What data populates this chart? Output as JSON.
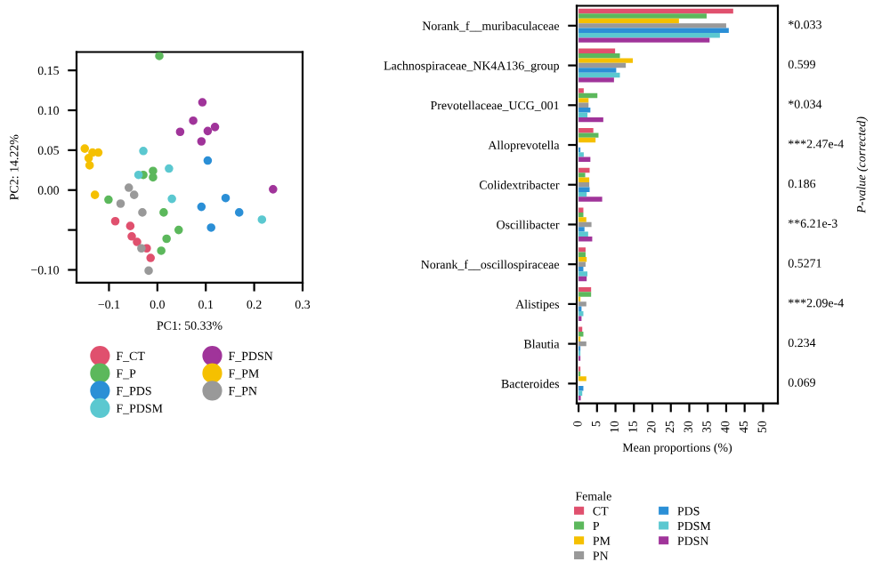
{
  "chart_data": [
    {
      "type": "scatter",
      "xlabel": "PC1: 50.33%",
      "ylabel": "PC2: 14.22%",
      "xlim": [
        -0.167,
        0.3
      ],
      "ylim": [
        -0.116,
        0.173
      ],
      "xticks": [
        {
          "value": -0.1,
          "label": "−0.1"
        },
        {
          "value": 0.0,
          "label": "0.0"
        },
        {
          "value": 0.1,
          "label": "0.1"
        },
        {
          "value": 0.2,
          "label": "0.2"
        },
        {
          "value": 0.3,
          "label": "0.3"
        }
      ],
      "yticks": [
        {
          "value": -0.1,
          "label": "−0.10"
        },
        {
          "value": -0.05,
          "label": null
        },
        {
          "value": 0.0,
          "label": "0.00"
        },
        {
          "value": 0.05,
          "label": "0.05"
        },
        {
          "value": 0.1,
          "label": "0.10"
        },
        {
          "value": 0.15,
          "label": "0.15"
        }
      ],
      "legend": "bottom",
      "marker": "circle",
      "series": [
        {
          "name": "F_CT",
          "color": "#e0506e",
          "x": [
            -0.087,
            -0.056,
            -0.042,
            -0.014,
            -0.022,
            -0.053
          ],
          "values": [
            -0.039,
            -0.045,
            -0.065,
            -0.085,
            -0.073,
            -0.058
          ]
        },
        {
          "name": "F_P",
          "color": "#5cb85c",
          "x": [
            0.004,
            -0.101,
            -0.029,
            -0.009,
            0.013,
            0.044,
            0.019,
            0.008,
            -0.009
          ],
          "values": [
            0.168,
            -0.012,
            0.019,
            0.024,
            -0.028,
            -0.05,
            -0.061,
            -0.076,
            0.016
          ]
        },
        {
          "name": "F_PDS",
          "color": "#2b8fd6",
          "x": [
            0.104,
            0.111,
            0.141,
            0.091,
            0.169
          ],
          "values": [
            0.037,
            -0.047,
            -0.01,
            -0.021,
            -0.028
          ]
        },
        {
          "name": "F_PDSM",
          "color": "#5bc8d0",
          "x": [
            -0.029,
            -0.039,
            0.03,
            0.216,
            0.024
          ],
          "values": [
            0.049,
            0.019,
            -0.011,
            -0.037,
            0.027
          ]
        },
        {
          "name": "F_PDSN",
          "color": "#a0349a",
          "x": [
            0.093,
            0.047,
            0.074,
            0.091,
            0.104,
            0.239,
            0.119
          ],
          "values": [
            0.11,
            0.073,
            0.087,
            0.061,
            0.074,
            0.001,
            0.079
          ]
        },
        {
          "name": "F_PM",
          "color": "#f5c000",
          "x": [
            -0.15,
            -0.142,
            -0.134,
            -0.122,
            -0.14,
            -0.129
          ],
          "values": [
            0.052,
            0.04,
            0.047,
            0.047,
            0.031,
            -0.006
          ]
        },
        {
          "name": "F_PN",
          "color": "#999999",
          "x": [
            -0.059,
            -0.076,
            -0.031,
            -0.033,
            -0.018,
            -0.048
          ],
          "values": [
            0.003,
            -0.017,
            -0.028,
            -0.073,
            -0.101,
            -0.006
          ]
        }
      ]
    },
    {
      "type": "bar",
      "orientation": "horizontal",
      "xlabel": "Mean proportions (%)",
      "y2label": "P-value (corrected)",
      "legend_title": "Female",
      "legend": "bottom",
      "xlim": [
        -0.5,
        54
      ],
      "xticks": [
        0,
        5,
        10,
        15,
        20,
        25,
        30,
        35,
        40,
        45,
        50
      ],
      "categories": [
        "Norank_f__muribaculaceae",
        "Lachnospiraceae_NK4A136_group",
        "Prevotellaceae_UCG_001",
        "Alloprevotella",
        "Colidextribacter",
        "Oscillibacter",
        "Norank_f__oscillospiraceae",
        "Alistipes",
        "Blautia",
        "Bacteroides"
      ],
      "annotations": [
        "*0.033",
        "0.599",
        "*0.034",
        "***2.47e-4",
        "0.186",
        "**6.21e-3",
        "0.5271",
        "***2.09e-4",
        "0.234",
        "0.069"
      ],
      "series": [
        {
          "name": "CT",
          "color": "#e0506e",
          "values": [
            41.9,
            9.9,
            1.4,
            4.0,
            3.0,
            1.3,
            1.9,
            3.4,
            1.0,
            0.5
          ]
        },
        {
          "name": "P",
          "color": "#5cb85c",
          "values": [
            34.7,
            11.2,
            5.1,
            5.4,
            1.8,
            1.3,
            1.9,
            3.4,
            1.3,
            0.5
          ]
        },
        {
          "name": "PM",
          "color": "#f5c000",
          "values": [
            27.2,
            14.7,
            2.7,
            4.6,
            2.9,
            2.1,
            2.2,
            0.5,
            0.5,
            2.1
          ]
        },
        {
          "name": "PN",
          "color": "#999999",
          "values": [
            40.0,
            12.8,
            2.7,
            null,
            2.9,
            3.5,
            1.9,
            2.1,
            2.1,
            null
          ]
        },
        {
          "name": "PDS",
          "color": "#2b8fd6",
          "values": [
            40.7,
            10.2,
            3.2,
            0.5,
            3.0,
            1.6,
            1.3,
            0.8,
            0.5,
            1.3
          ]
        },
        {
          "name": "PDSM",
          "color": "#5bc8d0",
          "values": [
            38.3,
            11.2,
            2.4,
            1.4,
            2.2,
            2.6,
            2.4,
            1.3,
            0.5,
            1.0
          ]
        },
        {
          "name": "PDSN",
          "color": "#a0349a",
          "values": [
            35.5,
            9.6,
            6.7,
            3.2,
            6.4,
            3.7,
            2.2,
            0.8,
            0.5,
            0.6
          ]
        }
      ]
    }
  ]
}
